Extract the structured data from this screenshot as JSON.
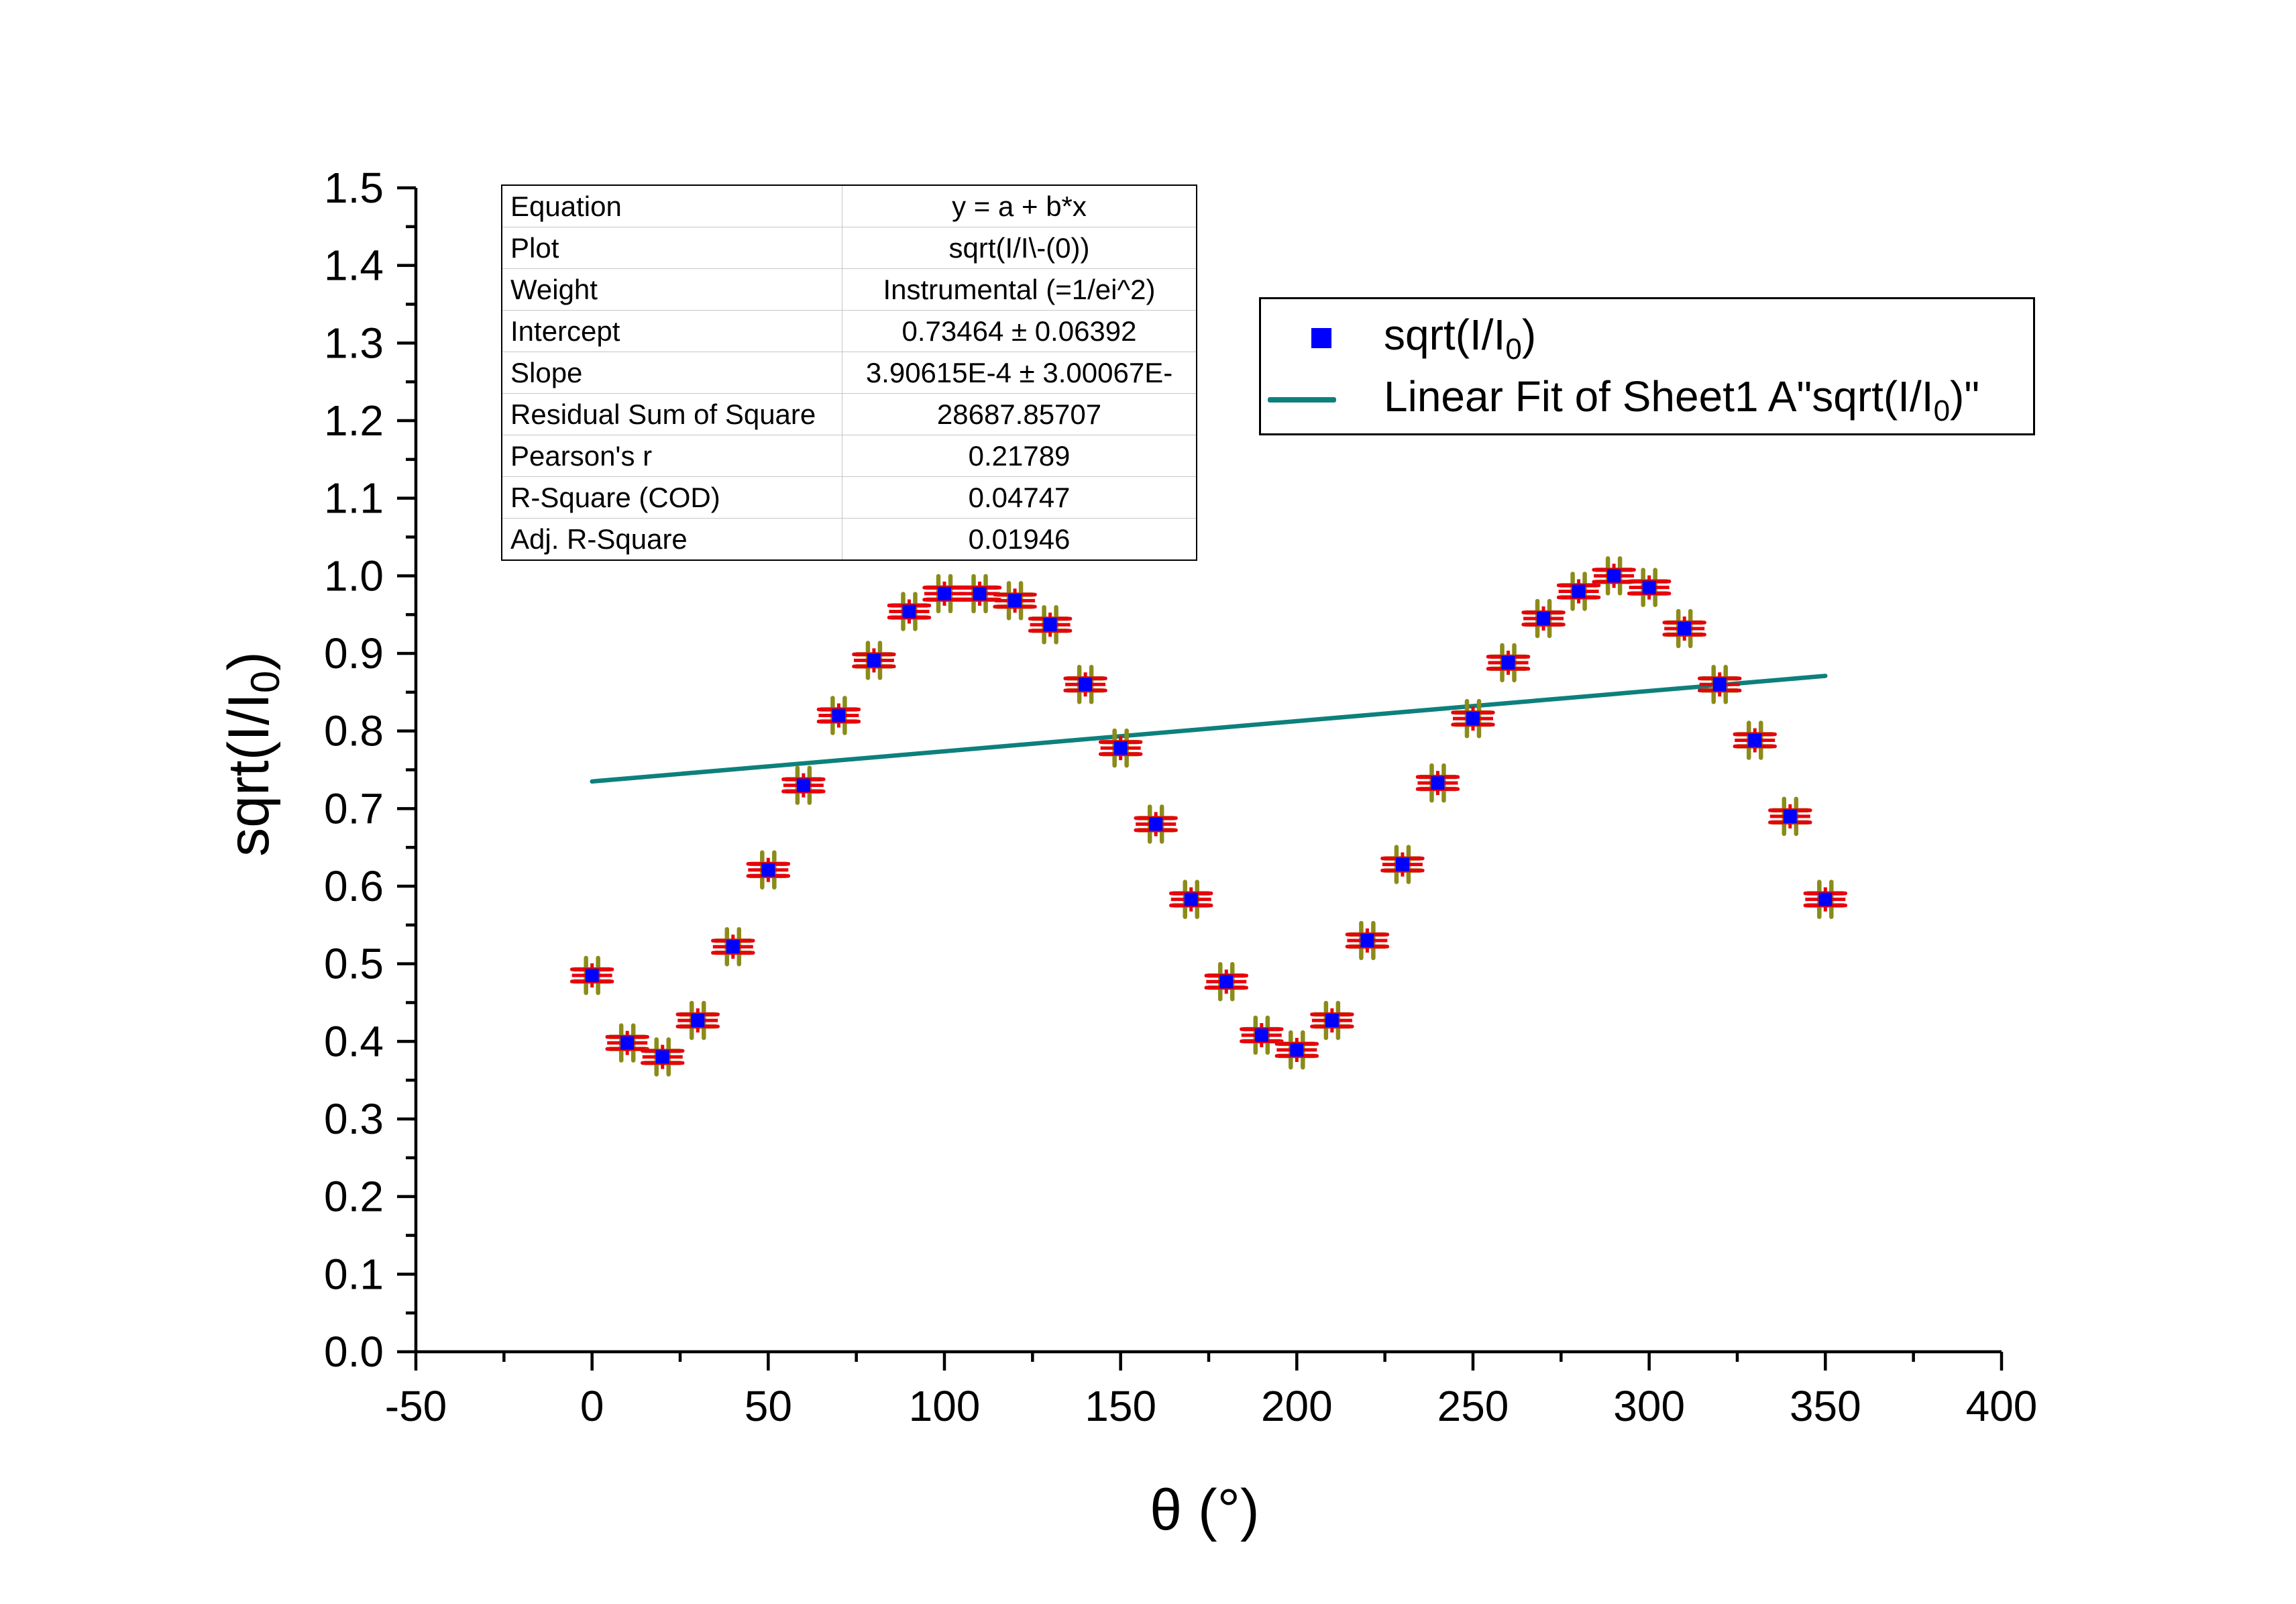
{
  "chart_data": {
    "type": "scatter",
    "xlabel": "θ (°)",
    "ylabel": "sqrt(I/I₀)",
    "xlim": [
      -50,
      400
    ],
    "ylim": [
      0.0,
      1.5
    ],
    "x_ticks": [
      "-50",
      "0",
      "50",
      "100",
      "150",
      "200",
      "250",
      "300",
      "350",
      "400"
    ],
    "y_ticks": [
      "0.0",
      "0.1",
      "0.2",
      "0.3",
      "0.4",
      "0.5",
      "0.6",
      "0.7",
      "0.8",
      "0.9",
      "1.0",
      "1.1",
      "1.2",
      "1.3",
      "1.4",
      "1.5"
    ],
    "grid": false,
    "legend_position": "top-right",
    "series": [
      {
        "name": "sqrt(I/I0)",
        "kind": "scatter",
        "marker": "square",
        "color": "#0000ff",
        "error_bar_color": "#e8000b",
        "error_bar_cap_color": "#8b8b1a",
        "x": [
          0,
          10,
          20,
          30,
          40,
          50,
          60,
          70,
          80,
          90,
          100,
          110,
          120,
          130,
          140,
          150,
          160,
          170,
          180,
          190,
          200,
          210,
          220,
          230,
          240,
          250,
          260,
          270,
          280,
          290,
          300,
          310,
          320,
          330,
          340,
          350
        ],
        "y": [
          0.485,
          0.398,
          0.38,
          0.427,
          0.522,
          0.621,
          0.73,
          0.82,
          0.891,
          0.954,
          0.977,
          0.977,
          0.968,
          0.937,
          0.86,
          0.778,
          0.68,
          0.583,
          0.477,
          0.408,
          0.389,
          0.427,
          0.53,
          0.628,
          0.733,
          0.816,
          0.888,
          0.945,
          0.98,
          1.0,
          0.985,
          0.932,
          0.86,
          0.788,
          0.69,
          0.583
        ]
      },
      {
        "name": "Linear Fit of Sheet1 A\"sqrt(I/I0)\"",
        "kind": "line",
        "color": "#0d807c",
        "intercept": 0.73464,
        "slope": 0.000390615,
        "x": [
          0,
          350
        ],
        "y": [
          0.735,
          0.871
        ]
      }
    ]
  },
  "fit_table": [
    {
      "key": "Equation",
      "value": "y = a + b*x"
    },
    {
      "key": "Plot",
      "value": "sqrt(I/I\\-(0))"
    },
    {
      "key": "Weight",
      "value": "Instrumental (=1/ei^2)"
    },
    {
      "key": "Intercept",
      "value": "0.73464 ± 0.06392"
    },
    {
      "key": "Slope",
      "value": "3.90615E-4 ± 3.00067E-"
    },
    {
      "key": "Residual Sum of Square",
      "value": "28687.85707"
    },
    {
      "key": "Pearson's r",
      "value": "0.21789"
    },
    {
      "key": "R-Square (COD)",
      "value": "0.04747"
    },
    {
      "key": "Adj. R-Square",
      "value": "0.01946"
    }
  ],
  "legend": {
    "item1": {
      "text": "sqrt(I/I",
      "sub": "0",
      "close": ")"
    },
    "item2": {
      "text": "Linear Fit of Sheet1 A\"sqrt(I/I",
      "sub": "0",
      "close": ")\""
    }
  },
  "axis_titles": {
    "x": "θ (°)",
    "y_main": "sqrt(I/I",
    "y_sub": "0",
    "y_close": ")"
  }
}
